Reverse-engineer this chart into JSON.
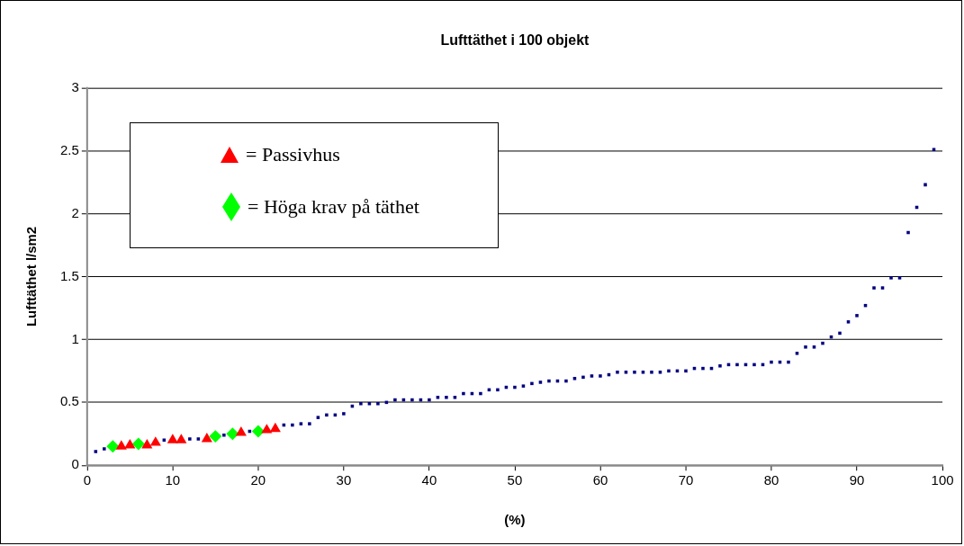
{
  "chart_data": {
    "type": "scatter",
    "title": "Lufttäthet i 100 objekt",
    "xlabel": "(%)",
    "ylabel": "Lufttäthet l/sm2",
    "xlim": [
      0,
      100
    ],
    "xticks": [
      0,
      10,
      20,
      30,
      40,
      50,
      60,
      70,
      80,
      90,
      100
    ],
    "ylim": [
      0,
      3
    ],
    "yticks": [
      0,
      0.5,
      1,
      1.5,
      2,
      2.5,
      3
    ],
    "grid": "y",
    "legend": "top left",
    "series": [
      {
        "color": "#000080",
        "marker": "square",
        "x": [
          1,
          2,
          9,
          12,
          13,
          16,
          19,
          23,
          24,
          25,
          26,
          27,
          28,
          29,
          30,
          31,
          32,
          33,
          34,
          35,
          36,
          37,
          38,
          39,
          40,
          41,
          42,
          43,
          44,
          45,
          46,
          47,
          48,
          49,
          50,
          51,
          52,
          53,
          54,
          55,
          56,
          57,
          58,
          59,
          60,
          61,
          62,
          63,
          64,
          65,
          66,
          67,
          68,
          69,
          70,
          71,
          72,
          73,
          74,
          75,
          76,
          77,
          78,
          79,
          80,
          81,
          82,
          83,
          84,
          85,
          86,
          87,
          88,
          89,
          90,
          91,
          92,
          93,
          94,
          95,
          96,
          97,
          98,
          99
        ],
        "values": [
          0.11,
          0.13,
          0.2,
          0.21,
          0.21,
          0.24,
          0.27,
          0.32,
          0.32,
          0.33,
          0.33,
          0.38,
          0.4,
          0.4,
          0.41,
          0.47,
          0.49,
          0.49,
          0.49,
          0.5,
          0.52,
          0.52,
          0.52,
          0.52,
          0.52,
          0.54,
          0.54,
          0.54,
          0.57,
          0.57,
          0.57,
          0.6,
          0.6,
          0.62,
          0.62,
          0.63,
          0.65,
          0.66,
          0.67,
          0.67,
          0.67,
          0.69,
          0.7,
          0.71,
          0.71,
          0.72,
          0.74,
          0.74,
          0.74,
          0.74,
          0.74,
          0.74,
          0.75,
          0.75,
          0.75,
          0.77,
          0.77,
          0.77,
          0.79,
          0.8,
          0.8,
          0.8,
          0.8,
          0.8,
          0.82,
          0.82,
          0.82,
          0.89,
          0.94,
          0.94,
          0.97,
          1.02,
          1.05,
          1.14,
          1.19,
          1.27,
          1.41,
          1.41,
          1.49,
          1.49,
          1.85,
          2.05,
          2.23,
          2.51
        ]
      },
      {
        "name": "= Passivhus",
        "color": "#ff0000",
        "marker": "triangle",
        "x": [
          4,
          5,
          7,
          8,
          10,
          11,
          14,
          18,
          21,
          22
        ],
        "values": [
          0.15,
          0.16,
          0.16,
          0.18,
          0.2,
          0.2,
          0.21,
          0.26,
          0.28,
          0.29
        ]
      },
      {
        "name": "= Höga krav på täthet",
        "color": "#00ff00",
        "marker": "diamond",
        "x": [
          3,
          6,
          15,
          17,
          20
        ],
        "values": [
          0.15,
          0.17,
          0.23,
          0.25,
          0.27
        ]
      }
    ]
  }
}
